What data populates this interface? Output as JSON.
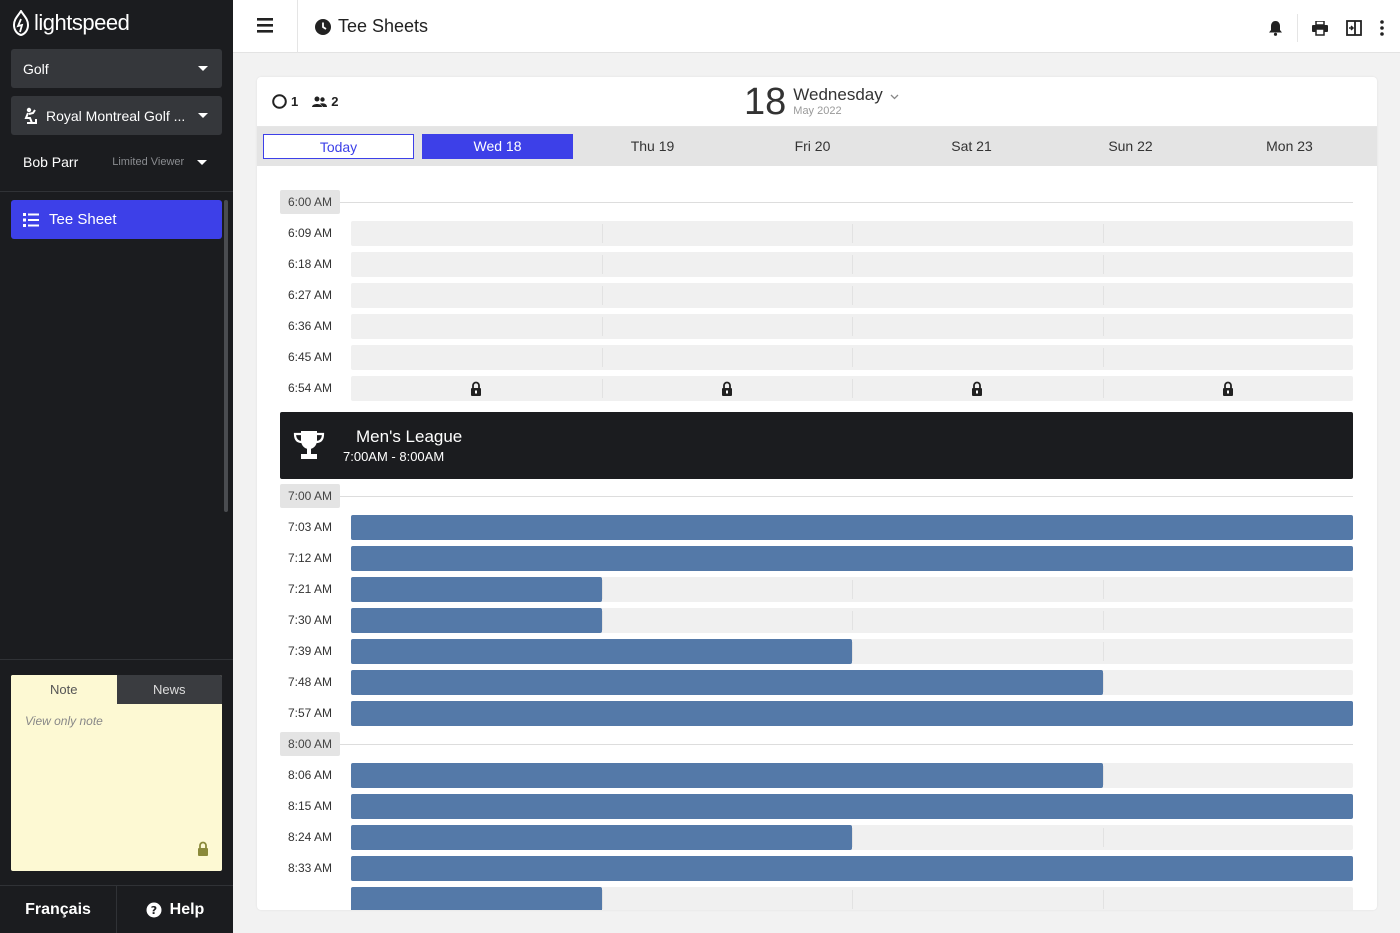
{
  "app": {
    "brand": "lightspeed",
    "page_title": "Tee Sheets"
  },
  "sidebar": {
    "course_type": "Golf",
    "club": "Royal Montreal Golf ...",
    "user_name": "Bob Parr",
    "user_role": "Limited Viewer",
    "nav_active": "Tee Sheet",
    "note_tabs": [
      "Note",
      "News"
    ],
    "note_placeholder": "View only note",
    "footer_lang": "Français",
    "footer_help": "Help"
  },
  "header": {
    "stat_rounds": "1",
    "stat_players": "2",
    "day_number": "18",
    "day_name": "Wednesday",
    "month_year": "May 2022"
  },
  "day_tabs": [
    "Today",
    "Wed 18",
    "Thu 19",
    "Fri 20",
    "Sat 21",
    "Sun 22",
    "Mon 23"
  ],
  "event": {
    "title": "Men's League",
    "time": "7:00AM - 8:00AM"
  },
  "colors": {
    "accent": "#3d40e8",
    "booked": "#5479a8",
    "sidebar": "#1b1c1f",
    "note": "#fdf9d3"
  },
  "sheet": [
    {
      "type": "hour",
      "label": "6:00 AM"
    },
    {
      "type": "slot",
      "time": "6:09 AM",
      "filled_quarters": 0
    },
    {
      "type": "slot",
      "time": "6:18 AM",
      "filled_quarters": 0
    },
    {
      "type": "slot",
      "time": "6:27 AM",
      "filled_quarters": 0
    },
    {
      "type": "slot",
      "time": "6:36 AM",
      "filled_quarters": 0
    },
    {
      "type": "slot",
      "time": "6:45 AM",
      "filled_quarters": 0
    },
    {
      "type": "slot",
      "time": "6:54 AM",
      "filled_quarters": 0,
      "locked": true
    },
    {
      "type": "event"
    },
    {
      "type": "hour",
      "label": "7:00 AM"
    },
    {
      "type": "slot",
      "time": "7:03 AM",
      "filled_quarters": 4
    },
    {
      "type": "slot",
      "time": "7:12 AM",
      "filled_quarters": 4
    },
    {
      "type": "slot",
      "time": "7:21 AM",
      "filled_quarters": 1
    },
    {
      "type": "slot",
      "time": "7:30 AM",
      "filled_quarters": 1
    },
    {
      "type": "slot",
      "time": "7:39 AM",
      "filled_quarters": 2
    },
    {
      "type": "slot",
      "time": "7:48 AM",
      "filled_quarters": 3
    },
    {
      "type": "slot",
      "time": "7:57 AM",
      "filled_quarters": 4
    },
    {
      "type": "hour",
      "label": "8:00 AM"
    },
    {
      "type": "slot",
      "time": "8:06 AM",
      "filled_quarters": 3
    },
    {
      "type": "slot",
      "time": "8:15 AM",
      "filled_quarters": 4
    },
    {
      "type": "slot",
      "time": "8:24 AM",
      "filled_quarters": 2
    },
    {
      "type": "slot",
      "time": "8:33 AM",
      "filled_quarters": 4
    },
    {
      "type": "slot",
      "time": "",
      "filled_quarters": 1
    }
  ]
}
